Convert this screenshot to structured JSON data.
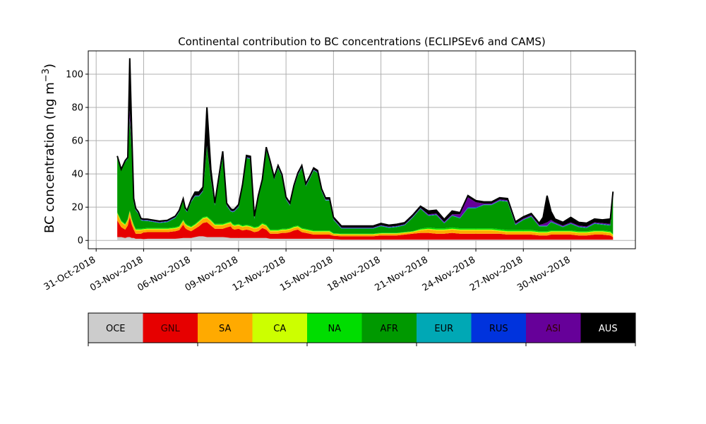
{
  "chart_data": {
    "type": "area",
    "title": "Continental contribution to BC concentrations (ECLIPSEv6 and CAMS)",
    "ylabel": "BC concentration (ng m",
    "ylabel_sup": "−3",
    "ylabel_close": ")",
    "xlabel": "",
    "ylim": [
      -5,
      114
    ],
    "xlim": [
      "2018-10-30T12:00",
      "2018-12-04T02:00"
    ],
    "yticks": [
      0,
      20,
      40,
      60,
      80,
      100
    ],
    "xticks": [
      {
        "date": "2018-10-31",
        "label": "31-Oct-2018"
      },
      {
        "date": "2018-11-03",
        "label": "03-Nov-2018"
      },
      {
        "date": "2018-11-06",
        "label": "06-Nov-2018"
      },
      {
        "date": "2018-11-09",
        "label": "09-Nov-2018"
      },
      {
        "date": "2018-11-12",
        "label": "12-Nov-2018"
      },
      {
        "date": "2018-11-15",
        "label": "15-Nov-2018"
      },
      {
        "date": "2018-11-18",
        "label": "18-Nov-2018"
      },
      {
        "date": "2018-11-21",
        "label": "21-Nov-2018"
      },
      {
        "date": "2018-11-24",
        "label": "24-Nov-2018"
      },
      {
        "date": "2018-11-27",
        "label": "27-Nov-2018"
      },
      {
        "date": "2018-11-30",
        "label": "30-Nov-2018"
      }
    ],
    "grid": true,
    "stacked": true,
    "x": [
      "2018-11-01T08:00",
      "2018-11-01T14:00",
      "2018-11-01T20:00",
      "2018-11-02T00:00",
      "2018-11-02T03:00",
      "2018-11-02T06:00",
      "2018-11-02T09:00",
      "2018-11-02T12:00",
      "2018-11-02T16:00",
      "2018-11-02T20:00",
      "2018-11-03T00:00",
      "2018-11-03T06:00",
      "2018-11-03T12:00",
      "2018-11-04T00:00",
      "2018-11-04T12:00",
      "2018-11-05T00:00",
      "2018-11-05T06:00",
      "2018-11-05T12:00",
      "2018-11-05T15:00",
      "2018-11-05T18:00",
      "2018-11-06T00:00",
      "2018-11-06T06:00",
      "2018-11-06T12:00",
      "2018-11-06T18:00",
      "2018-11-07T00:00",
      "2018-11-07T06:00",
      "2018-11-07T12:00",
      "2018-11-08T00:00",
      "2018-11-08T06:00",
      "2018-11-08T12:00",
      "2018-11-08T15:00",
      "2018-11-08T18:00",
      "2018-11-09T00:00",
      "2018-11-09T06:00",
      "2018-11-09T12:00",
      "2018-11-09T18:00",
      "2018-11-10T00:00",
      "2018-11-10T06:00",
      "2018-11-10T12:00",
      "2018-11-10T18:00",
      "2018-11-11T00:00",
      "2018-11-11T06:00",
      "2018-11-11T12:00",
      "2018-11-11T18:00",
      "2018-11-12T00:00",
      "2018-11-12T06:00",
      "2018-11-12T12:00",
      "2018-11-12T18:00",
      "2018-11-13T00:00",
      "2018-11-13T06:00",
      "2018-11-13T12:00",
      "2018-11-13T18:00",
      "2018-11-14T00:00",
      "2018-11-14T06:00",
      "2018-11-14T12:00",
      "2018-11-14T18:00",
      "2018-11-15T00:00",
      "2018-11-15T12:00",
      "2018-11-16T00:00",
      "2018-11-16T12:00",
      "2018-11-17T00:00",
      "2018-11-17T12:00",
      "2018-11-18T00:00",
      "2018-11-18T12:00",
      "2018-11-19T00:00",
      "2018-11-19T12:00",
      "2018-11-20T00:00",
      "2018-11-20T12:00",
      "2018-11-21T00:00",
      "2018-11-21T12:00",
      "2018-11-22T00:00",
      "2018-11-22T12:00",
      "2018-11-23T00:00",
      "2018-11-23T12:00",
      "2018-11-24T00:00",
      "2018-11-24T12:00",
      "2018-11-25T00:00",
      "2018-11-25T12:00",
      "2018-11-26T00:00",
      "2018-11-26T12:00",
      "2018-11-27T00:00",
      "2018-11-27T12:00",
      "2018-11-28T00:00",
      "2018-11-28T06:00",
      "2018-11-28T12:00",
      "2018-11-28T18:00",
      "2018-11-29T00:00",
      "2018-11-29T12:00",
      "2018-11-30T00:00",
      "2018-11-30T12:00",
      "2018-12-01T00:00",
      "2018-12-01T12:00",
      "2018-12-02T00:00",
      "2018-12-02T12:00",
      "2018-12-02T16:00"
    ],
    "series": [
      {
        "name": "OCE",
        "color": "#cccccc",
        "values": [
          2,
          2,
          1.5,
          2,
          2,
          1.5,
          1.5,
          1,
          1,
          1,
          0.8,
          1,
          1,
          1,
          1,
          1,
          1.2,
          1.5,
          1.5,
          1.5,
          1.5,
          2,
          2.5,
          2.5,
          2,
          2,
          2,
          2,
          1.8,
          1.5,
          1.5,
          1.5,
          1.5,
          1.5,
          1.5,
          1.5,
          1.5,
          1.5,
          1.5,
          1.5,
          1,
          1,
          1,
          1,
          1,
          1,
          1,
          1,
          1,
          1,
          1,
          1,
          1,
          1,
          1,
          1,
          0.8,
          0.5,
          0.5,
          0.5,
          0.5,
          0.5,
          0.5,
          0.5,
          0.5,
          0.5,
          0.5,
          0.5,
          0.5,
          0.5,
          0.5,
          0.5,
          0.5,
          0.5,
          0.5,
          0.5,
          0.5,
          0.5,
          0.5,
          0.5,
          0.5,
          0.5,
          0.5,
          0.5,
          0.5,
          0.5,
          0.5,
          0.5,
          0.5,
          0.5,
          0.5,
          0.5,
          0.5,
          0.5,
          0.5
        ]
      },
      {
        "name": "GNL",
        "color": "#e60000",
        "values": [
          10,
          6,
          5,
          7,
          12,
          8,
          5,
          3,
          3,
          3,
          4,
          4,
          4,
          4,
          4,
          4.5,
          5,
          8,
          6,
          5,
          4,
          5,
          6,
          8,
          9,
          7,
          5,
          5,
          6,
          7,
          5.5,
          5,
          5.5,
          4.5,
          5,
          4.5,
          3.5,
          4,
          6,
          5,
          3,
          3,
          3,
          3.5,
          3.5,
          4,
          5,
          5.5,
          4,
          3.5,
          3,
          2.5,
          2.5,
          2.5,
          2.5,
          2.5,
          2,
          2,
          2,
          2,
          2,
          2,
          2.5,
          2.5,
          2.5,
          3,
          3.5,
          4,
          4,
          3.5,
          3.5,
          4,
          3.5,
          3.5,
          3.5,
          3.5,
          3.5,
          3.5,
          3,
          3,
          3,
          3,
          2.5,
          2.5,
          2.5,
          3,
          3,
          3,
          3,
          2.5,
          2.5,
          3,
          3,
          2.5,
          1.5
        ]
      },
      {
        "name": "SA",
        "color": "#ffaa00",
        "values": [
          4,
          3,
          2.5,
          3,
          3,
          2.5,
          2,
          2,
          2,
          2,
          1.5,
          1.5,
          1.5,
          1.5,
          1.5,
          1.5,
          1.5,
          2,
          2,
          2,
          2,
          2,
          2.5,
          2.5,
          2.5,
          2.5,
          2,
          2,
          2,
          2,
          2,
          2,
          2,
          2,
          2,
          2,
          2,
          2,
          2,
          2,
          1.5,
          1.5,
          1.5,
          1.5,
          1.5,
          1.5,
          1.5,
          1.5,
          1.5,
          1.5,
          1.5,
          1.5,
          1.5,
          1.5,
          1.5,
          1.5,
          1,
          1,
          1,
          1,
          1,
          1,
          1,
          1,
          1,
          1,
          1,
          1.5,
          2,
          2,
          2,
          2,
          2,
          2,
          2,
          2,
          2,
          1.5,
          1.5,
          1.5,
          1.5,
          1.5,
          1.5,
          1.5,
          1.5,
          1.5,
          1.5,
          1.5,
          1.5,
          1.5,
          1.5,
          1.5,
          1.5,
          1.5,
          1
        ]
      },
      {
        "name": "CA",
        "color": "#ccff00",
        "values": [
          0.5,
          0.5,
          0.5,
          0.5,
          0.5,
          0.5,
          0.5,
          0.5,
          0.5,
          0.5,
          0.5,
          0.5,
          0.5,
          0.5,
          0.5,
          0.5,
          0.5,
          0.5,
          0.5,
          0.5,
          0.5,
          0.5,
          0.5,
          0.5,
          0.5,
          0.5,
          0.5,
          0.5,
          0.5,
          0.5,
          0.5,
          0.5,
          0.5,
          0.5,
          0.5,
          0.5,
          0.5,
          0.5,
          0.5,
          0.5,
          0.5,
          0.5,
          0.5,
          0.5,
          0.5,
          0.5,
          0.5,
          0.5,
          0.5,
          0.5,
          0.5,
          0.5,
          0.5,
          0.5,
          0.5,
          0.5,
          0.3,
          0.3,
          0.3,
          0.3,
          0.3,
          0.3,
          0.3,
          0.3,
          0.3,
          0.3,
          0.3,
          0.5,
          0.5,
          0.5,
          0.5,
          0.5,
          0.5,
          0.5,
          0.5,
          0.5,
          0.5,
          0.5,
          0.5,
          0.5,
          0.5,
          0.5,
          0.5,
          0.5,
          0.5,
          0.5,
          0.5,
          0.5,
          0.5,
          0.5,
          0.5,
          0.5,
          0.5,
          0.5,
          0.5
        ]
      },
      {
        "name": "NA",
        "color": "#00dd00",
        "values": [
          0.5,
          0.5,
          0.5,
          0.5,
          0.5,
          0.5,
          0.5,
          0.5,
          0.5,
          0.5,
          0.5,
          0.5,
          0.5,
          0.5,
          0.5,
          0.5,
          0.5,
          0.5,
          0.5,
          0.5,
          0.5,
          0.5,
          0.5,
          0.5,
          0.5,
          0.5,
          0.5,
          0.5,
          0.5,
          0.5,
          0.5,
          0.5,
          0.5,
          0.5,
          0.5,
          0.5,
          0.5,
          0.5,
          0.5,
          0.5,
          0.5,
          0.5,
          0.5,
          0.5,
          0.5,
          0.5,
          0.5,
          0.5,
          0.5,
          0.5,
          0.5,
          0.5,
          0.5,
          0.5,
          0.5,
          0.5,
          0.3,
          0.3,
          0.3,
          0.3,
          0.3,
          0.3,
          0.3,
          0.3,
          0.3,
          0.3,
          0.3,
          0.5,
          0.8,
          0.8,
          0.8,
          0.8,
          0.8,
          0.8,
          0.8,
          0.8,
          0.8,
          0.8,
          0.8,
          0.8,
          0.8,
          0.8,
          0.5,
          0.5,
          0.5,
          0.5,
          0.5,
          0.5,
          0.5,
          0.5,
          0.5,
          0.5,
          0.5,
          0.5,
          0.5
        ]
      },
      {
        "name": "AFR",
        "color": "#009900",
        "values": [
          33,
          30,
          37,
          36,
          55,
          40,
          13,
          11,
          9,
          5,
          4.5,
          4.2,
          3.8,
          3,
          3.5,
          5.5,
          8.3,
          11.5,
          8,
          7.5,
          14.5,
          16.5,
          14.5,
          15.5,
          42,
          23.5,
          11,
          40,
          10,
          6,
          7,
          8,
          10,
          23,
          40,
          40,
          5,
          17,
          24.5,
          45,
          39.5,
          30,
          37,
          31,
          17.5,
          13.5,
          23,
          30,
          36,
          25.5,
          30.5,
          36,
          34.5,
          23.5,
          18,
          18,
          8,
          3,
          3,
          3,
          3,
          3,
          4,
          3,
          3.5,
          4,
          8,
          12,
          7,
          8,
          3,
          7,
          6,
          12,
          12,
          14,
          14,
          17,
          17,
          3,
          6,
          8,
          3,
          3,
          3,
          5,
          4,
          2,
          4,
          2.5,
          2,
          4,
          3.5,
          3.5,
          23.5
        ]
      },
      {
        "name": "EUR",
        "color": "#00a8b5",
        "values": [
          0.2,
          0.2,
          0.2,
          0.2,
          0.2,
          0.2,
          0.2,
          0.2,
          0.2,
          0.2,
          0.2,
          0.2,
          0.2,
          0.2,
          0.2,
          0.2,
          0.2,
          0.2,
          0.2,
          0.2,
          0.2,
          0.2,
          0.2,
          0.2,
          0.2,
          0.2,
          0.2,
          0.2,
          0.2,
          0.2,
          0.2,
          0.2,
          0.2,
          0.2,
          0.2,
          0.2,
          0.2,
          0.2,
          0.2,
          0.2,
          0.2,
          0.2,
          0.2,
          0.2,
          0.2,
          0.2,
          0.2,
          0.2,
          0.2,
          0.2,
          0.2,
          0.2,
          0.2,
          0.2,
          0.2,
          0.2,
          0.2,
          0.2,
          0.2,
          0.2,
          0.2,
          0.2,
          0.2,
          0.2,
          0.2,
          0.2,
          0.2,
          0.2,
          0.2,
          0.2,
          0.2,
          0.2,
          0.2,
          0.2,
          0.2,
          0.2,
          0.2,
          0.2,
          0.2,
          0.2,
          0.2,
          0.2,
          0.2,
          0.2,
          0.2,
          0.2,
          0.2,
          0.2,
          0.2,
          0.2,
          0.2,
          0.2,
          0.2,
          0.2,
          0.2
        ]
      },
      {
        "name": "RUS",
        "color": "#0033dd",
        "values": [
          0.2,
          0.2,
          0.2,
          0.2,
          0.2,
          0.2,
          0.2,
          0.2,
          0.2,
          0.2,
          0.2,
          0.2,
          0.2,
          0.2,
          0.2,
          0.2,
          0.2,
          0.2,
          0.2,
          0.2,
          0.2,
          0.2,
          0.2,
          0.2,
          0.2,
          0.2,
          0.2,
          0.2,
          0.2,
          0.2,
          0.2,
          0.2,
          0.2,
          0.2,
          0.2,
          0.2,
          0.2,
          0.2,
          0.2,
          0.2,
          0.2,
          0.2,
          0.2,
          0.2,
          0.2,
          0.2,
          0.2,
          0.2,
          0.2,
          0.2,
          0.2,
          0.2,
          0.2,
          0.2,
          0.2,
          0.2,
          0.2,
          0.2,
          0.2,
          0.2,
          0.2,
          0.2,
          0.2,
          0.2,
          0.2,
          0.2,
          0.2,
          0.2,
          0.2,
          0.2,
          0.2,
          0.2,
          0.2,
          0.5,
          0.5,
          0.2,
          0.2,
          0.2,
          0.2,
          0.2,
          0.2,
          0.2,
          0.2,
          0.2,
          0.2,
          0.2,
          0.2,
          0.2,
          0.2,
          0.2,
          0.2,
          0.2,
          0.2,
          0.2,
          0.2
        ]
      },
      {
        "name": "ASI",
        "color": "#660099",
        "values": [
          0.2,
          0.2,
          0.2,
          0.2,
          5,
          0.2,
          0.2,
          0.2,
          0.2,
          0.2,
          0.2,
          0.2,
          0.2,
          0.2,
          0.2,
          0.2,
          0.2,
          0.2,
          0.2,
          0.2,
          0.2,
          0.2,
          0.2,
          0.2,
          0.2,
          0.2,
          0.2,
          0.2,
          0.2,
          0.2,
          0.2,
          0.2,
          0.2,
          0.2,
          0.2,
          0.2,
          0.2,
          0.2,
          0.2,
          0.2,
          0.2,
          0.2,
          0.2,
          0.2,
          0.2,
          0.2,
          0.2,
          0.2,
          0.2,
          0.2,
          0.2,
          0.2,
          0.2,
          0.2,
          0.2,
          0.2,
          0.2,
          0.2,
          0.2,
          0.2,
          0.2,
          0.2,
          0.2,
          0.2,
          0.2,
          0.2,
          0.2,
          0.2,
          0.5,
          0.5,
          0.5,
          0.5,
          2,
          6,
          3,
          0.5,
          0.5,
          0.5,
          0.5,
          0.5,
          0.5,
          0.5,
          0.5,
          1,
          2,
          1,
          0.5,
          0.5,
          0.5,
          0.5,
          0.5,
          0.5,
          0.5,
          0.5,
          0.5
        ]
      },
      {
        "name": "AUS",
        "color": "#000000",
        "values": [
          0.2,
          0.2,
          0.4,
          0.4,
          31.2,
          11.7,
          2.2,
          0.8,
          0.6,
          0.6,
          0.5,
          0.5,
          0.5,
          0.5,
          0.5,
          0.5,
          0.5,
          0.5,
          0.5,
          0.5,
          1,
          2,
          2,
          2,
          23,
          6,
          1,
          3,
          1,
          1,
          0.8,
          0.8,
          1,
          1,
          1,
          1,
          1,
          1,
          1,
          1,
          1,
          1,
          1,
          1,
          1,
          1,
          1,
          1,
          1,
          1,
          1,
          1,
          1,
          1,
          1,
          1,
          1,
          1,
          1,
          1,
          1,
          1,
          1,
          1,
          1,
          1,
          1,
          1,
          2,
          2,
          1.5,
          2,
          1,
          1,
          1,
          1,
          1,
          1,
          1,
          1,
          1,
          1,
          1,
          4,
          16,
          5,
          2,
          2,
          3,
          2,
          2,
          2,
          2,
          3,
          1
        ]
      }
    ]
  }
}
